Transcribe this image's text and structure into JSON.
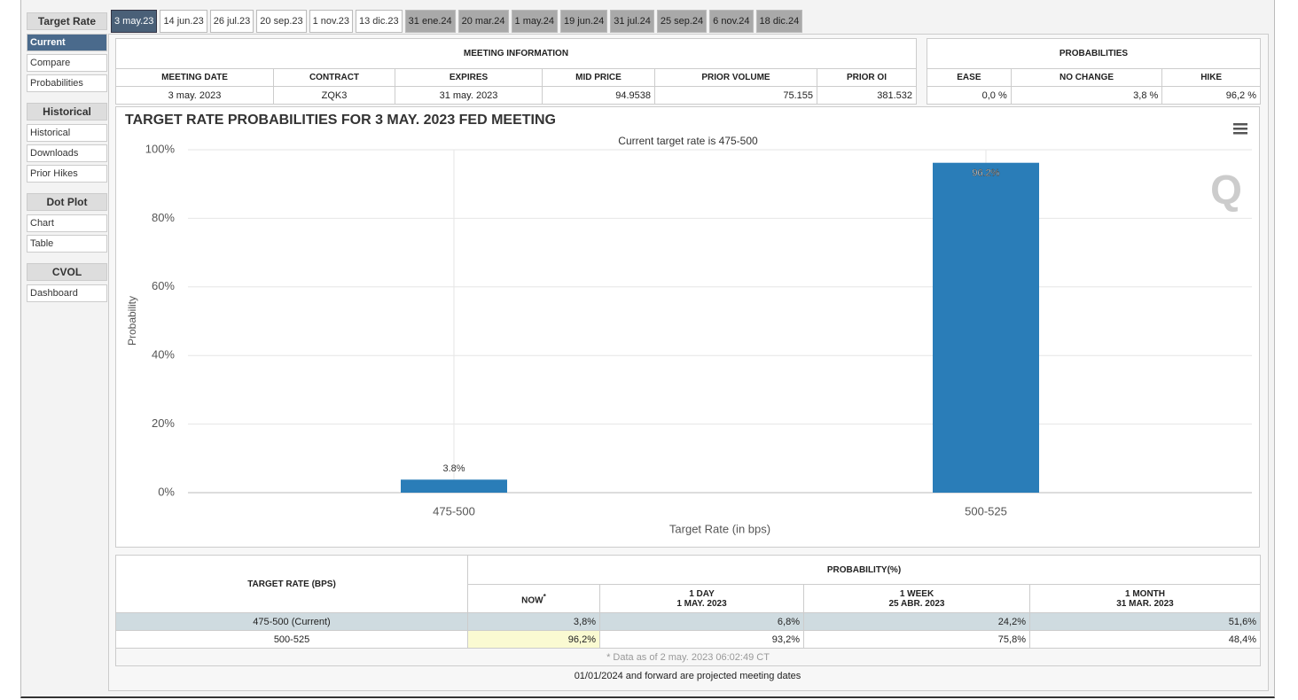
{
  "sidebar": [
    {
      "heading": "Target Rate",
      "items": [
        "Current",
        "Compare",
        "Probabilities"
      ]
    },
    {
      "heading": "Historical",
      "items": [
        "Historical",
        "Downloads",
        "Prior Hikes"
      ]
    },
    {
      "heading": "Dot Plot",
      "items": [
        "Chart",
        "Table"
      ]
    },
    {
      "heading": "CVOL",
      "items": [
        "Dashboard"
      ]
    }
  ],
  "tabs": [
    "3 may.23",
    "14 jun.23",
    "26 jul.23",
    "20 sep.23",
    "1 nov.23",
    "13 dic.23",
    "31 ene.24",
    "20 mar.24",
    "1 may.24",
    "19 jun.24",
    "31 jul.24",
    "25 sep.24",
    "6 nov.24",
    "18 dic.24"
  ],
  "meeting_info": {
    "title": "MEETING INFORMATION",
    "headers": [
      "MEETING DATE",
      "CONTRACT",
      "EXPIRES",
      "MID PRICE",
      "PRIOR VOLUME",
      "PRIOR OI"
    ],
    "row": [
      "3 may. 2023",
      "ZQK3",
      "31 may. 2023",
      "94.9538",
      "75.155",
      "381.532"
    ]
  },
  "probabilities": {
    "title": "PROBABILITIES",
    "headers": [
      "EASE",
      "NO CHANGE",
      "HIKE"
    ],
    "row": [
      "0,0 %",
      "3,8 %",
      "96,2 %"
    ]
  },
  "chart_data": {
    "type": "bar",
    "title": "TARGET RATE PROBABILITIES FOR 3 MAY. 2023 FED MEETING",
    "subtitle": "Current target rate is 475-500",
    "y_label": "Probability",
    "x_label": "Target Rate (in bps)",
    "categories": [
      "475-500",
      "500-525"
    ],
    "values": [
      3.8,
      96.2
    ],
    "value_labels": [
      "3.8%",
      "96.2%"
    ],
    "color": "#2a7db8",
    "ylim": [
      0,
      100
    ],
    "yticks": [
      {
        "value": 0,
        "label": "0%"
      },
      {
        "value": 20,
        "label": "20%"
      },
      {
        "value": 40,
        "label": "40%"
      },
      {
        "value": 60,
        "label": "60%"
      },
      {
        "value": 80,
        "label": "80%"
      },
      {
        "value": 100,
        "label": "100%"
      }
    ],
    "grid": true
  },
  "prob_table": {
    "row_header": "TARGET RATE (BPS)",
    "group_header": "PROBABILITY(%)",
    "columns": [
      {
        "label": "NOW",
        "note": "*"
      },
      {
        "label": "1 DAY",
        "date": "1 MAY. 2023"
      },
      {
        "label": "1 WEEK",
        "date": "25 ABR. 2023"
      },
      {
        "label": "1 MONTH",
        "date": "31 MAR. 2023"
      }
    ],
    "rows": [
      [
        "475-500 (Current)",
        "3,8%",
        "6,8%",
        "24,2%",
        "51,6%"
      ],
      [
        "500-525",
        "96,2%",
        "93,2%",
        "75,8%",
        "48,4%"
      ]
    ],
    "note": "* Data as of 2 may. 2023 06:02:49 CT"
  },
  "footer": "01/01/2024 and forward are projected meeting dates"
}
